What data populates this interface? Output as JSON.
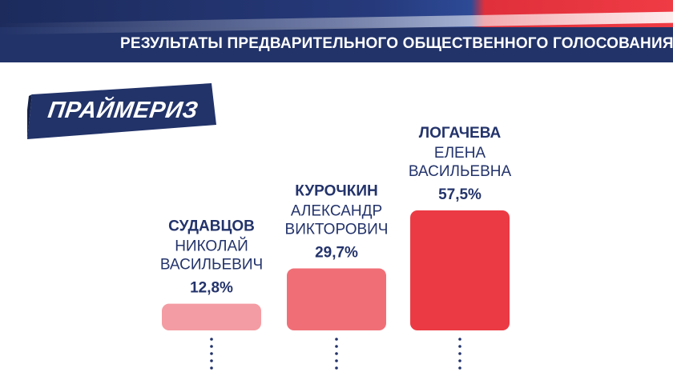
{
  "header": {
    "title": "РЕЗУЛЬТАТЫ ПРЕДВАРИТЕЛЬНОГО ОБЩЕСТВЕННОГО ГОЛОСОВАНИЯ",
    "badge": "ПРАЙМЕРИЗ"
  },
  "colors": {
    "navy": "#223369",
    "text_navy": "#23336b",
    "bar_light": "#f49ca3",
    "bar_mid": "#f06f77",
    "bar_strong": "#ec3a44"
  },
  "chart_data": {
    "type": "bar",
    "categories": [
      "СУДАВЦОВ НИКОЛАЙ ВАСИЛЬЕВИЧ",
      "КУРОЧКИН АЛЕКСАНДР ВИКТОРОВИЧ",
      "ЛОГАЧЕВА ЕЛЕНА ВАСИЛЬЕВНА"
    ],
    "values": [
      12.8,
      29.7,
      57.5
    ],
    "value_labels": [
      "12,8%",
      "29,7%",
      "57,5%"
    ],
    "candidates": [
      {
        "surname": "СУДАВЦОВ",
        "name": "НИКОЛАЙ",
        "patronymic": "ВАСИЛЬЕВИЧ",
        "percent": "12,8%",
        "value": 12.8,
        "color": "#f49ca3"
      },
      {
        "surname": "КУРОЧКИН",
        "name": "АЛЕКСАНДР",
        "patronymic": "ВИКТОРОВИЧ",
        "percent": "29,7%",
        "value": 29.7,
        "color": "#f06f77"
      },
      {
        "surname": "ЛОГАЧЕВА",
        "name": "ЕЛЕНА",
        "patronymic": "ВАСИЛЬЕВНА",
        "percent": "57,5%",
        "value": 57.5,
        "color": "#ec3a44"
      }
    ],
    "unit": "%",
    "grid": false,
    "legend": "none"
  }
}
